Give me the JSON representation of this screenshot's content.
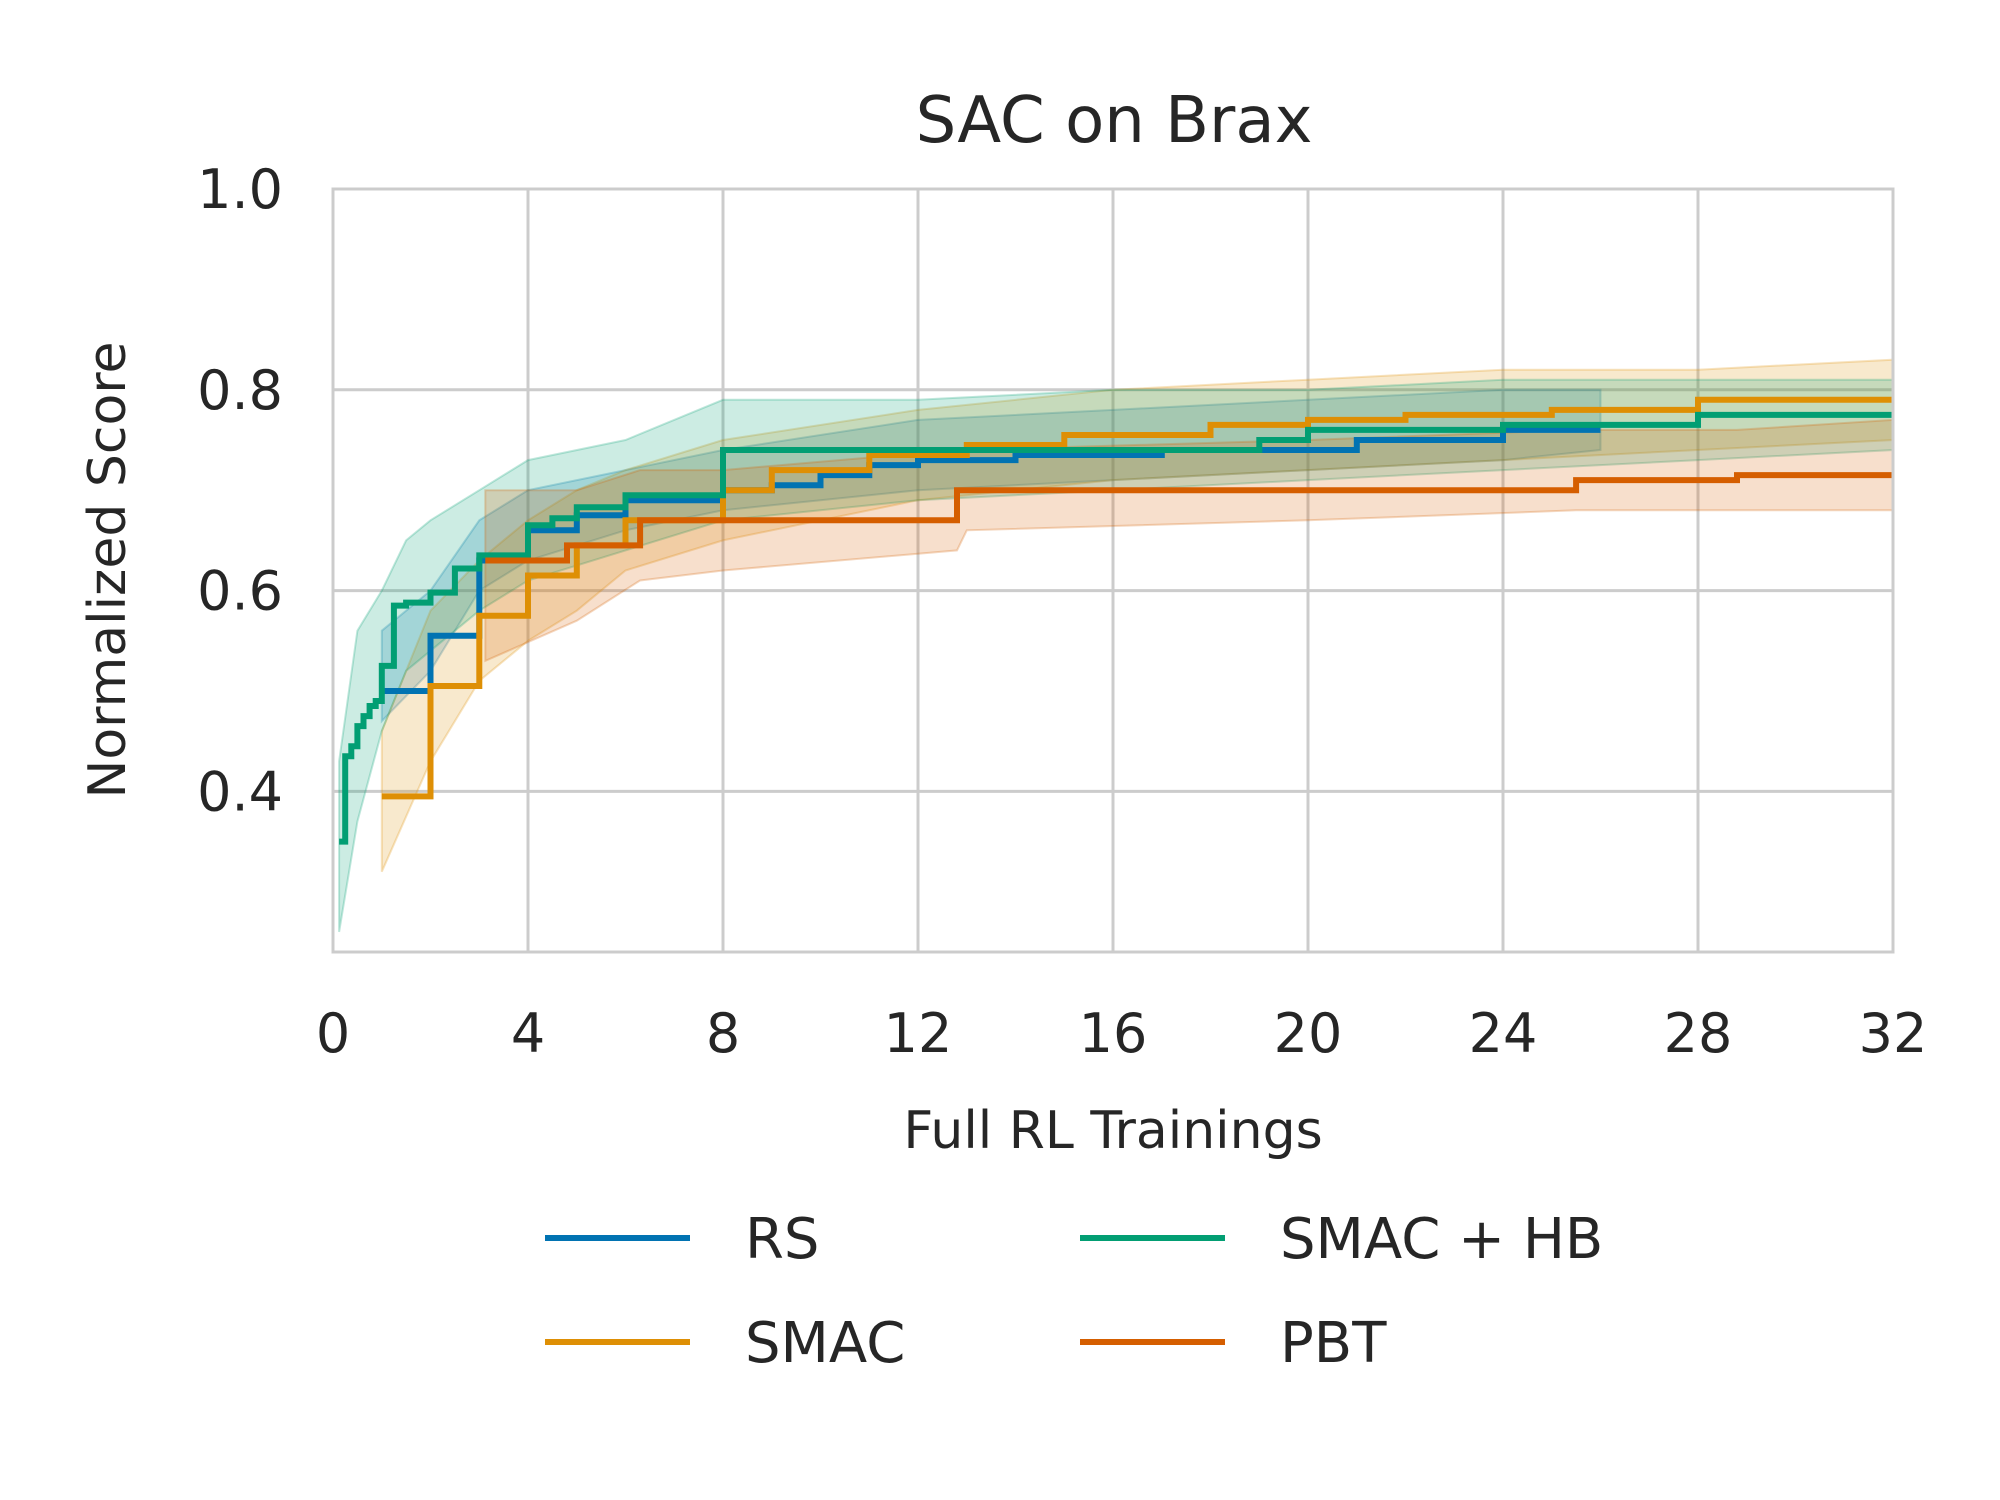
{
  "chart_data": {
    "type": "line",
    "title": "SAC on Brax",
    "xlabel": "Full RL Trainings",
    "ylabel": "Normalized Score",
    "xlim": [
      0,
      32
    ],
    "ylim": [
      0.24,
      1.0
    ],
    "xticks": [
      0,
      4,
      8,
      12,
      16,
      20,
      24,
      28,
      32
    ],
    "yticks": [
      0.4,
      0.6,
      0.8,
      1.0
    ],
    "ytick_labels": [
      "0.4",
      "0.6",
      "0.8",
      "1.0"
    ],
    "grid": true,
    "legend_position": "bottom",
    "series": [
      {
        "name": "RS",
        "color": "#0173b2",
        "points": [
          [
            1.0,
            0.5
          ],
          [
            2.0,
            0.5
          ],
          [
            2.0,
            0.555
          ],
          [
            3.0,
            0.555
          ],
          [
            3.0,
            0.63
          ],
          [
            4.0,
            0.63
          ],
          [
            4.0,
            0.66
          ],
          [
            5.0,
            0.66
          ],
          [
            5.0,
            0.675
          ],
          [
            6.0,
            0.675
          ],
          [
            6.0,
            0.69
          ],
          [
            8.0,
            0.69
          ],
          [
            8.0,
            0.7
          ],
          [
            9.0,
            0.7
          ],
          [
            9.0,
            0.705
          ],
          [
            10.0,
            0.705
          ],
          [
            10.0,
            0.715
          ],
          [
            11.0,
            0.715
          ],
          [
            11.0,
            0.725
          ],
          [
            12.0,
            0.725
          ],
          [
            12.0,
            0.73
          ],
          [
            14.0,
            0.73
          ],
          [
            14.0,
            0.735
          ],
          [
            17.0,
            0.735
          ],
          [
            17.0,
            0.74
          ],
          [
            21.0,
            0.74
          ],
          [
            21.0,
            0.75
          ],
          [
            24.0,
            0.75
          ],
          [
            24.0,
            0.76
          ],
          [
            26.0,
            0.76
          ]
        ],
        "band": [
          [
            1.0,
            0.47,
            0.56
          ],
          [
            2.0,
            0.52,
            0.6
          ],
          [
            3.0,
            0.6,
            0.67
          ],
          [
            4.0,
            0.63,
            0.7
          ],
          [
            6.0,
            0.66,
            0.72
          ],
          [
            8.0,
            0.68,
            0.74
          ],
          [
            12.0,
            0.7,
            0.77
          ],
          [
            16.0,
            0.71,
            0.78
          ],
          [
            20.0,
            0.72,
            0.79
          ],
          [
            24.0,
            0.73,
            0.8
          ],
          [
            26.0,
            0.74,
            0.8
          ]
        ]
      },
      {
        "name": "SMAC",
        "color": "#de8f05",
        "points": [
          [
            1.0,
            0.395
          ],
          [
            2.0,
            0.395
          ],
          [
            2.0,
            0.505
          ],
          [
            3.0,
            0.505
          ],
          [
            3.0,
            0.575
          ],
          [
            4.0,
            0.575
          ],
          [
            4.0,
            0.615
          ],
          [
            5.0,
            0.615
          ],
          [
            5.0,
            0.645
          ],
          [
            6.0,
            0.645
          ],
          [
            6.0,
            0.67
          ],
          [
            8.0,
            0.67
          ],
          [
            8.0,
            0.7
          ],
          [
            9.0,
            0.7
          ],
          [
            9.0,
            0.72
          ],
          [
            11.0,
            0.72
          ],
          [
            11.0,
            0.735
          ],
          [
            13.0,
            0.735
          ],
          [
            13.0,
            0.745
          ],
          [
            15.0,
            0.745
          ],
          [
            15.0,
            0.755
          ],
          [
            18.0,
            0.755
          ],
          [
            18.0,
            0.765
          ],
          [
            20.0,
            0.765
          ],
          [
            20.0,
            0.77
          ],
          [
            22.0,
            0.77
          ],
          [
            22.0,
            0.775
          ],
          [
            25.0,
            0.775
          ],
          [
            25.0,
            0.78
          ],
          [
            28.0,
            0.78
          ],
          [
            28.0,
            0.79
          ],
          [
            32.0,
            0.79
          ]
        ],
        "band": [
          [
            1.0,
            0.32,
            0.46
          ],
          [
            2.0,
            0.43,
            0.58
          ],
          [
            3.0,
            0.51,
            0.63
          ],
          [
            4.0,
            0.55,
            0.67
          ],
          [
            5.0,
            0.58,
            0.7
          ],
          [
            6.0,
            0.62,
            0.72
          ],
          [
            8.0,
            0.65,
            0.75
          ],
          [
            12.0,
            0.69,
            0.78
          ],
          [
            16.0,
            0.71,
            0.8
          ],
          [
            20.0,
            0.72,
            0.81
          ],
          [
            24.0,
            0.73,
            0.82
          ],
          [
            28.0,
            0.74,
            0.82
          ],
          [
            32.0,
            0.75,
            0.83
          ]
        ]
      },
      {
        "name": "SMAC + HB",
        "color": "#029e73",
        "points": [
          [
            0.125,
            0.35
          ],
          [
            0.25,
            0.35
          ],
          [
            0.25,
            0.435
          ],
          [
            0.375,
            0.435
          ],
          [
            0.375,
            0.445
          ],
          [
            0.5,
            0.445
          ],
          [
            0.5,
            0.465
          ],
          [
            0.625,
            0.465
          ],
          [
            0.625,
            0.475
          ],
          [
            0.75,
            0.475
          ],
          [
            0.75,
            0.485
          ],
          [
            0.875,
            0.485
          ],
          [
            0.875,
            0.49
          ],
          [
            1.0,
            0.49
          ],
          [
            1.0,
            0.525
          ],
          [
            1.25,
            0.525
          ],
          [
            1.25,
            0.585
          ],
          [
            1.5,
            0.585
          ],
          [
            1.5,
            0.588
          ],
          [
            2.0,
            0.588
          ],
          [
            2.0,
            0.598
          ],
          [
            2.5,
            0.598
          ],
          [
            2.5,
            0.622
          ],
          [
            3.0,
            0.622
          ],
          [
            3.0,
            0.635
          ],
          [
            4.0,
            0.635
          ],
          [
            4.0,
            0.665
          ],
          [
            4.5,
            0.665
          ],
          [
            4.5,
            0.672
          ],
          [
            5.0,
            0.672
          ],
          [
            5.0,
            0.683
          ],
          [
            6.0,
            0.683
          ],
          [
            6.0,
            0.695
          ],
          [
            8.0,
            0.695
          ],
          [
            8.0,
            0.74
          ],
          [
            19.0,
            0.74
          ],
          [
            19.0,
            0.75
          ],
          [
            20.0,
            0.75
          ],
          [
            20.0,
            0.76
          ],
          [
            24.0,
            0.76
          ],
          [
            24.0,
            0.765
          ],
          [
            28.0,
            0.765
          ],
          [
            28.0,
            0.775
          ],
          [
            32.0,
            0.775
          ]
        ],
        "band": [
          [
            0.125,
            0.26,
            0.43
          ],
          [
            0.5,
            0.37,
            0.56
          ],
          [
            1.0,
            0.46,
            0.6
          ],
          [
            1.5,
            0.52,
            0.65
          ],
          [
            2.0,
            0.54,
            0.67
          ],
          [
            3.0,
            0.58,
            0.7
          ],
          [
            4.0,
            0.61,
            0.73
          ],
          [
            6.0,
            0.64,
            0.75
          ],
          [
            8.0,
            0.67,
            0.79
          ],
          [
            12.0,
            0.69,
            0.79
          ],
          [
            16.0,
            0.7,
            0.8
          ],
          [
            20.0,
            0.71,
            0.8
          ],
          [
            24.0,
            0.72,
            0.81
          ],
          [
            28.0,
            0.73,
            0.81
          ],
          [
            32.0,
            0.74,
            0.81
          ]
        ]
      },
      {
        "name": "PBT",
        "color": "#d55e00",
        "points": [
          [
            3.125,
            0.63
          ],
          [
            4.8,
            0.63
          ],
          [
            4.8,
            0.645
          ],
          [
            6.3,
            0.645
          ],
          [
            6.3,
            0.67
          ],
          [
            12.8,
            0.67
          ],
          [
            12.8,
            0.7
          ],
          [
            25.5,
            0.7
          ],
          [
            25.5,
            0.71
          ],
          [
            28.8,
            0.71
          ],
          [
            28.8,
            0.715
          ],
          [
            32.0,
            0.715
          ]
        ],
        "band": [
          [
            3.125,
            0.53,
            0.7
          ],
          [
            5.0,
            0.57,
            0.7
          ],
          [
            6.3,
            0.61,
            0.72
          ],
          [
            8.0,
            0.62,
            0.72
          ],
          [
            12.8,
            0.64,
            0.74
          ],
          [
            13.0,
            0.66,
            0.74
          ],
          [
            20.0,
            0.67,
            0.75
          ],
          [
            25.5,
            0.68,
            0.76
          ],
          [
            28.8,
            0.68,
            0.76
          ],
          [
            32.0,
            0.68,
            0.77
          ]
        ]
      }
    ]
  }
}
